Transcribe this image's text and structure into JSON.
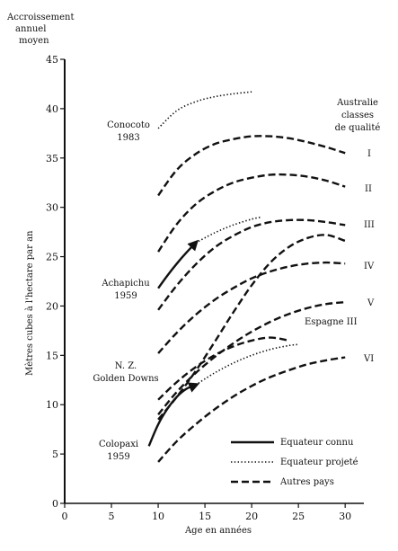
{
  "chart_data": {
    "type": "line",
    "ylabel_top": [
      "Accroissement",
      "annuel",
      "moyen"
    ],
    "ylabel": "Mètres cubes à l'hectare par an",
    "xlabel": "Age en années",
    "xlim": [
      0,
      32
    ],
    "ylim": [
      0,
      45
    ],
    "x_ticks": [
      0,
      5,
      10,
      15,
      20,
      25,
      30
    ],
    "y_ticks": [
      0,
      5,
      10,
      15,
      20,
      25,
      30,
      35,
      40,
      45
    ],
    "grid": false,
    "legend": {
      "position": "bottom-right",
      "items": [
        {
          "style": "solid",
          "label": "Equateur connu"
        },
        {
          "style": "dotted",
          "label": "Equateur projeté"
        },
        {
          "style": "dashed",
          "label": "Autres pays"
        }
      ]
    },
    "header_annotation": [
      "Australie",
      "classes",
      "de qualité"
    ],
    "series": [
      {
        "style": "dotted",
        "x": [
          10,
          12,
          14,
          16,
          18,
          20
        ],
        "y": [
          38,
          39.8,
          40.7,
          41.2,
          41.5,
          41.7
        ]
      },
      {
        "style": "dashed",
        "label": "I",
        "x": [
          10,
          12,
          14,
          16,
          18,
          20,
          22,
          24,
          26,
          28,
          30
        ],
        "y": [
          31.2,
          33.8,
          35.4,
          36.4,
          36.9,
          37.2,
          37.2,
          37,
          36.6,
          36.1,
          35.5
        ]
      },
      {
        "style": "dashed",
        "label": "II",
        "x": [
          10,
          12,
          14,
          16,
          18,
          20,
          22,
          24,
          26,
          28,
          30
        ],
        "y": [
          25.5,
          28.3,
          30.3,
          31.6,
          32.5,
          33,
          33.3,
          33.3,
          33.1,
          32.7,
          32.1
        ]
      },
      {
        "style": "dashed",
        "label": "III",
        "x": [
          10,
          12,
          14,
          16,
          18,
          20,
          22,
          24,
          26,
          28,
          30
        ],
        "y": [
          19.6,
          22.1,
          24.2,
          25.9,
          27.1,
          28,
          28.5,
          28.7,
          28.7,
          28.5,
          28.2
        ]
      },
      {
        "style": "dashed",
        "label": "IV",
        "x": [
          10,
          12,
          14,
          16,
          18,
          20,
          22,
          24,
          26,
          28,
          30
        ],
        "y": [
          15.2,
          17.3,
          19.1,
          20.6,
          21.8,
          22.8,
          23.5,
          24,
          24.3,
          24.4,
          24.3
        ]
      },
      {
        "style": "dashed",
        "label": "V",
        "x": [
          10,
          12,
          14,
          16,
          18,
          20,
          22,
          24,
          26,
          28,
          30
        ],
        "y": [
          9,
          11.3,
          13.2,
          14.8,
          16.2,
          17.4,
          18.4,
          19.2,
          19.8,
          20.2,
          20.4
        ]
      },
      {
        "style": "dashed",
        "label": "VI",
        "x": [
          10,
          12,
          14,
          16,
          18,
          20,
          22,
          24,
          26,
          28,
          30
        ],
        "y": [
          4.2,
          6.3,
          8,
          9.5,
          10.8,
          11.9,
          12.8,
          13.5,
          14.1,
          14.5,
          14.8
        ]
      },
      {
        "style": "dashed",
        "label": "Espagne III",
        "x": [
          10,
          12,
          14,
          16,
          18,
          20,
          22,
          24,
          26,
          28,
          30
        ],
        "y": [
          8.5,
          10.8,
          13.4,
          16.3,
          19.3,
          22.1,
          24.4,
          26,
          26.9,
          27.2,
          26.6
        ]
      },
      {
        "style": "dashed",
        "x": [
          10,
          12,
          14,
          16,
          18,
          20,
          22,
          24
        ],
        "y": [
          10.5,
          12.3,
          13.8,
          15,
          15.9,
          16.5,
          16.8,
          16.5
        ]
      },
      {
        "style": "solid",
        "name": "Achapichu 1959",
        "x": [
          10,
          11,
          12,
          13,
          14
        ],
        "y": [
          21.8,
          23.1,
          24.3,
          25.4,
          26.4
        ]
      },
      {
        "style": "dotted",
        "x": [
          14,
          16,
          18,
          20,
          21
        ],
        "y": [
          26.4,
          27.4,
          28.2,
          28.8,
          29
        ]
      },
      {
        "style": "solid",
        "name": "Colopaxi 1959",
        "x": [
          9,
          10,
          11,
          12,
          13,
          14
        ],
        "y": [
          5.8,
          8,
          9.6,
          10.8,
          11.6,
          12
        ]
      },
      {
        "style": "dotted",
        "x": [
          14,
          16,
          18,
          20,
          22,
          24,
          25
        ],
        "y": [
          12,
          13.2,
          14.2,
          15,
          15.6,
          16,
          16.1
        ]
      }
    ],
    "annotations": [
      {
        "lines": [
          "Conocoto",
          "1983"
        ]
      },
      {
        "lines": [
          "Achapichu",
          "1959"
        ]
      },
      {
        "lines": [
          "N. Z.",
          "Golden Downs"
        ]
      },
      {
        "lines": [
          "Colopaxi",
          "1959"
        ]
      },
      {
        "lines": [
          "Espagne III"
        ]
      },
      {
        "lines": [
          "I"
        ]
      },
      {
        "lines": [
          "II"
        ]
      },
      {
        "lines": [
          "III"
        ]
      },
      {
        "lines": [
          "IV"
        ]
      },
      {
        "lines": [
          "V"
        ]
      },
      {
        "lines": [
          "VI"
        ]
      }
    ],
    "arrows": [
      {
        "series_label": "Achapichu 1959",
        "at": [
          14,
          26.4
        ]
      },
      {
        "series_label": "Colopaxi 1959",
        "at": [
          14,
          12
        ]
      }
    ]
  }
}
